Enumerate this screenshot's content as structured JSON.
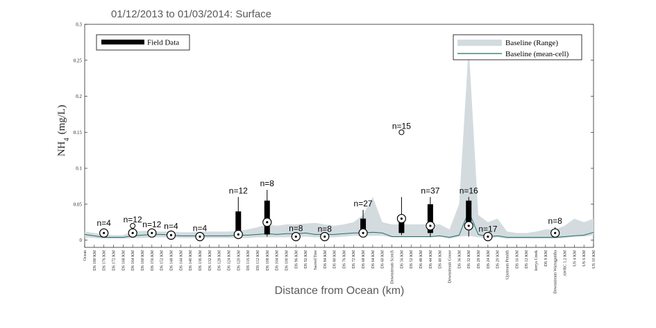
{
  "chart_data": {
    "type": "box",
    "title": "01/12/2013 to 01/03/2014: Surface",
    "xlabel": "Distance from Ocean (km)",
    "ylabel": "NH",
    "ylabel_sub": "4",
    "ylabel_unit": "(mg/L)",
    "ylim": [
      -0.01,
      0.3
    ],
    "yticks": [
      0,
      0.05,
      0.1,
      0.15,
      0.2,
      0.25,
      0.3
    ],
    "categories": [
      "Ocean",
      "DS 180 KM",
      "DS 176 KM",
      "DS 172 KM",
      "DS 168 KM",
      "DS 164 KM",
      "DS 160 KM",
      "DS 156 KM",
      "DS 152 KM",
      "DS 148 KM",
      "DS 144 KM",
      "DS 140 KM",
      "DS 136 KM",
      "DS 132 KM",
      "DS 128 KM",
      "DS 124 KM",
      "DS 120 KM",
      "DS 116 KM",
      "DS 112 KM",
      "DS 108 KM",
      "DS 104 KM",
      "DS 100 KM",
      "DS 96 KM",
      "DS 92 KM",
      "Sacred Tree",
      "DS 84 KM",
      "DS 80 KM",
      "DS 76 KM",
      "DS 72 KM",
      "DS 68 KM",
      "DS 64 KM",
      "DS 60 KM",
      "Downstream Scotch",
      "DS 56 KM",
      "DS 52 KM",
      "DS 48 KM",
      "DS 44 KM",
      "DS 40 KM",
      "Downstream Goose",
      "DS 36 KM",
      "DS 32 KM",
      "DS 28 KM",
      "DS 24 KM",
      "DS 20 KM",
      "Upstream Penrith",
      "DS 16 KM",
      "DS 12 KM",
      "Jerrys Creek",
      "DS 8 KM",
      "Downstream Warragamba",
      "AWRC 1.2 KM",
      "US 4 KM",
      "US 6 KM",
      "US 10 KM"
    ],
    "baseline_range": {
      "lower": [
        0.004,
        0.003,
        0.002,
        0.002,
        0.002,
        0.003,
        0.003,
        0.004,
        0.004,
        0.004,
        0.003,
        0.003,
        0.003,
        0.003,
        0.003,
        0.003,
        0.003,
        0.003,
        0.004,
        0.004,
        0.004,
        0.004,
        0.005,
        0.005,
        0.004,
        0.004,
        0.004,
        0.005,
        0.006,
        0.006,
        0.006,
        0.006,
        0.004,
        0.004,
        0.004,
        0.004,
        0.004,
        0.005,
        0.002,
        0.005,
        0.006,
        0.004,
        0.003,
        0.004,
        0.002,
        0.002,
        0.002,
        0.002,
        0.002,
        0.002,
        0.003,
        0.005,
        0.005,
        0.007
      ],
      "upper": [
        0.012,
        0.01,
        0.008,
        0.007,
        0.007,
        0.012,
        0.013,
        0.013,
        0.012,
        0.012,
        0.011,
        0.011,
        0.012,
        0.012,
        0.012,
        0.012,
        0.013,
        0.015,
        0.018,
        0.022,
        0.02,
        0.022,
        0.022,
        0.023,
        0.024,
        0.022,
        0.02,
        0.022,
        0.025,
        0.035,
        0.06,
        0.025,
        0.022,
        0.022,
        0.022,
        0.022,
        0.022,
        0.022,
        0.015,
        0.05,
        0.27,
        0.035,
        0.025,
        0.03,
        0.012,
        0.01,
        0.01,
        0.012,
        0.015,
        0.015,
        0.02,
        0.03,
        0.025,
        0.03
      ]
    },
    "baseline_mean": [
      0.008,
      0.006,
      0.004,
      0.004,
      0.004,
      0.006,
      0.007,
      0.008,
      0.008,
      0.007,
      0.006,
      0.006,
      0.006,
      0.006,
      0.006,
      0.006,
      0.007,
      0.007,
      0.008,
      0.009,
      0.008,
      0.009,
      0.009,
      0.01,
      0.008,
      0.008,
      0.008,
      0.009,
      0.01,
      0.01,
      0.011,
      0.01,
      0.005,
      0.005,
      0.005,
      0.005,
      0.005,
      0.006,
      0.004,
      0.007,
      0.04,
      0.008,
      0.005,
      0.006,
      0.004,
      0.004,
      0.004,
      0.004,
      0.004,
      0.004,
      0.005,
      0.006,
      0.007,
      0.011
    ],
    "boxes": [
      {
        "category": "DS 176 KM",
        "n": "n=4",
        "min": 0.007,
        "q1": 0.009,
        "median": 0.01,
        "q3": 0.012,
        "max": 0.015
      },
      {
        "category": "DS 164 KM",
        "n": "n=12",
        "min": 0.006,
        "q1": 0.008,
        "median": 0.01,
        "q3": 0.012,
        "max": 0.014,
        "outliers": [
          0.02
        ]
      },
      {
        "category": "DS 156 KM",
        "n": "n=12",
        "min": 0.007,
        "q1": 0.009,
        "median": 0.01,
        "q3": 0.011,
        "max": 0.013
      },
      {
        "category": "DS 148 KM",
        "n": "n=4",
        "min": 0.005,
        "q1": 0.006,
        "median": 0.007,
        "q3": 0.009,
        "max": 0.011
      },
      {
        "category": "DS 136 KM",
        "n": "n=4",
        "min": 0.003,
        "q1": 0.004,
        "median": 0.005,
        "q3": 0.006,
        "max": 0.008
      },
      {
        "category": "DS 120 KM",
        "n": "n=12",
        "min": 0.003,
        "q1": 0.005,
        "median": 0.008,
        "q3": 0.04,
        "max": 0.06
      },
      {
        "category": "DS 108 KM",
        "n": "n=8",
        "min": 0.005,
        "q1": 0.008,
        "median": 0.025,
        "q3": 0.055,
        "max": 0.07
      },
      {
        "category": "DS 96 KM",
        "n": "n=8",
        "min": 0.003,
        "q1": 0.004,
        "median": 0.005,
        "q3": 0.006,
        "max": 0.008
      },
      {
        "category": "DS 84 KM",
        "n": "n=8",
        "min": 0.003,
        "q1": 0.004,
        "median": 0.005,
        "q3": 0.006,
        "max": 0.007
      },
      {
        "category": "DS 68 KM",
        "n": "n=27",
        "min": 0.005,
        "q1": 0.008,
        "median": 0.01,
        "q3": 0.03,
        "max": 0.042
      },
      {
        "category": "DS 56 KM",
        "n": "n=15",
        "min": 0.007,
        "q1": 0.01,
        "median": 0.03,
        "q3": 0.035,
        "max": 0.06,
        "outliers": [
          0.15
        ]
      },
      {
        "category": "DS 44 KM",
        "n": "n=37",
        "min": 0.005,
        "q1": 0.01,
        "median": 0.02,
        "q3": 0.05,
        "max": 0.06
      },
      {
        "category": "DS 32 KM",
        "n": "n=16",
        "min": 0.005,
        "q1": 0.015,
        "median": 0.02,
        "q3": 0.055,
        "max": 0.06
      },
      {
        "category": "DS 24 KM",
        "n": "n=17",
        "min": 0.003,
        "q1": 0.004,
        "median": 0.005,
        "q3": 0.006,
        "max": 0.007
      },
      {
        "category": "Downstream Warragamba",
        "n": "n=8",
        "min": 0.007,
        "q1": 0.008,
        "median": 0.01,
        "q3": 0.013,
        "max": 0.018
      }
    ],
    "legend": {
      "field": "Field Data",
      "range": "Baseline (Range)",
      "mean": "Baseline (mean-cell)"
    },
    "colors": {
      "range": "#d3dbdf",
      "mean": "#1f6f6a",
      "box": "#000000",
      "axis": "#262626",
      "title": "#595959"
    }
  }
}
